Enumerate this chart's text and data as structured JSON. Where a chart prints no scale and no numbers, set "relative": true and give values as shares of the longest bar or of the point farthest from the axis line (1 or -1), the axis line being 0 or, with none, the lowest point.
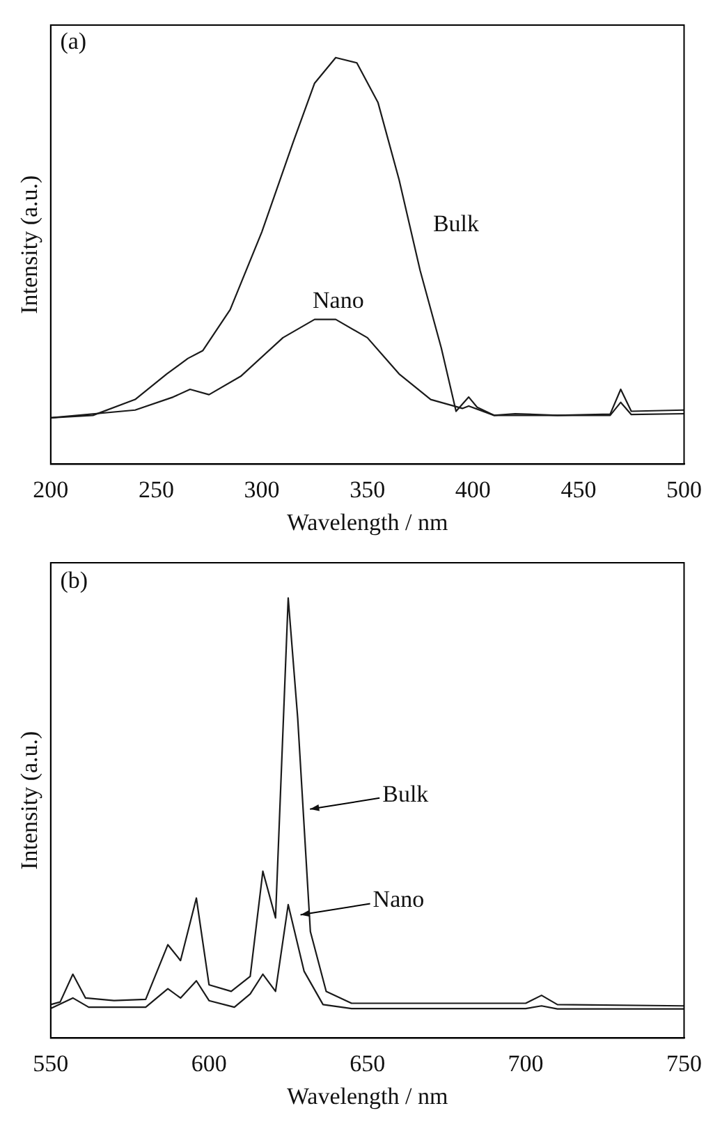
{
  "chart_data": [
    {
      "type": "line",
      "relative": true,
      "xlabel": "Wavelength / nm",
      "ylabel": "Intensity (a.u.)",
      "xlim": [
        200,
        500
      ],
      "xticks": [
        200,
        250,
        300,
        350,
        400,
        450,
        500
      ],
      "grid": false,
      "legend": false,
      "marker": "none",
      "line_style": "solid",
      "annotations": [
        "(a)",
        "Bulk",
        "Nano"
      ],
      "series": [
        {
          "color": "#1a1a1a",
          "x": [
            200,
            220,
            240,
            255,
            265,
            272,
            285,
            300,
            315,
            325,
            335,
            345,
            355,
            365,
            375,
            385,
            392,
            398,
            402,
            410,
            420,
            440,
            465,
            470,
            475,
            500
          ],
          "values": [
            0.114,
            0.12,
            0.159,
            0.222,
            0.26,
            0.279,
            0.38,
            0.571,
            0.794,
            0.937,
            1.0,
            0.987,
            0.89,
            0.7,
            0.476,
            0.286,
            0.13,
            0.165,
            0.14,
            0.12,
            0.124,
            0.12,
            0.123,
            0.184,
            0.13,
            0.133
          ]
        },
        {
          "color": "#1a1a1a",
          "x": [
            200,
            240,
            258,
            266,
            275,
            290,
            310,
            325,
            335,
            350,
            365,
            380,
            395,
            398,
            410,
            465,
            470,
            475,
            500
          ],
          "values": [
            0.114,
            0.133,
            0.165,
            0.184,
            0.171,
            0.216,
            0.311,
            0.356,
            0.356,
            0.311,
            0.222,
            0.159,
            0.137,
            0.143,
            0.12,
            0.12,
            0.152,
            0.122,
            0.124
          ]
        }
      ]
    },
    {
      "type": "line",
      "relative": true,
      "xlabel": "Wavelength / nm",
      "ylabel": "Intensity (a.u.)",
      "xlim": [
        550,
        750
      ],
      "xticks": [
        550,
        600,
        650,
        700,
        750
      ],
      "grid": false,
      "legend": false,
      "marker": "none",
      "line_style": "solid",
      "annotations": [
        "(b)",
        {
          "text": "Bulk",
          "x": 631,
          "y": 0.52
        },
        {
          "text": "Nano",
          "x": 628,
          "y": 0.28
        }
      ],
      "series": [
        {
          "color": "#1a1a1a",
          "x": [
            550,
            553,
            557,
            561,
            570,
            580,
            587,
            591,
            596,
            600,
            607,
            613,
            617,
            621,
            625,
            628,
            632,
            637,
            645,
            700,
            705,
            710,
            750
          ],
          "values": [
            0.076,
            0.082,
            0.145,
            0.091,
            0.085,
            0.088,
            0.212,
            0.176,
            0.318,
            0.121,
            0.106,
            0.14,
            0.379,
            0.273,
            1.0,
            0.727,
            0.242,
            0.106,
            0.079,
            0.079,
            0.097,
            0.076,
            0.073
          ]
        },
        {
          "color": "#1a1a1a",
          "x": [
            550,
            557,
            562,
            580,
            587,
            591,
            596,
            600,
            608,
            613,
            617,
            621,
            625,
            630,
            636,
            645,
            700,
            705,
            710,
            750
          ],
          "values": [
            0.067,
            0.091,
            0.07,
            0.07,
            0.112,
            0.091,
            0.13,
            0.085,
            0.07,
            0.1,
            0.145,
            0.106,
            0.303,
            0.152,
            0.076,
            0.067,
            0.067,
            0.073,
            0.066,
            0.066
          ]
        }
      ]
    }
  ]
}
